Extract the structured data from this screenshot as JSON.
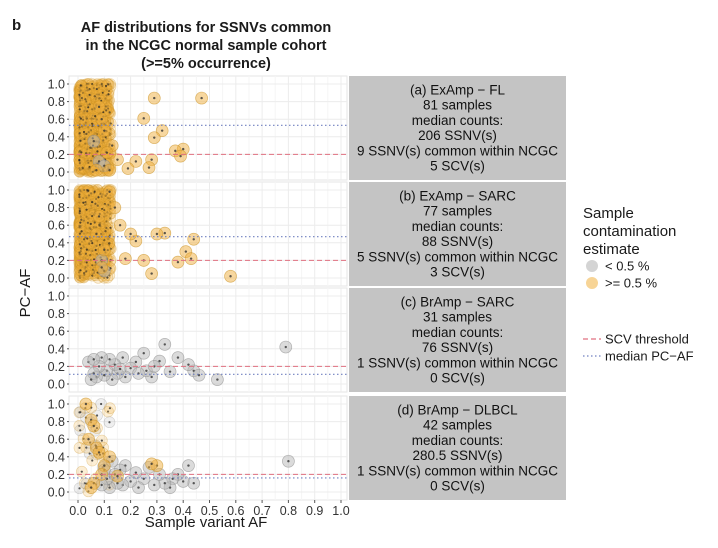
{
  "panel_label": "b",
  "chart_data": {
    "type": "scatter",
    "title": "AF distributions for SSNVs common\nin the NCGC normal sample cohort\n(>=5% occurrence)",
    "xlabel": "Sample variant AF",
    "ylabel": "PC−AF",
    "xlim": [
      0,
      1
    ],
    "ylim": [
      0,
      1
    ],
    "x_ticks": [
      "0.0",
      "0.1",
      "0.2",
      "0.3",
      "0.4",
      "0.5",
      "0.6",
      "0.7",
      "0.8",
      "0.9",
      "1.0"
    ],
    "y_ticks": [
      "0.0",
      "0.2",
      "0.4",
      "0.6",
      "0.8",
      "1.0"
    ],
    "grid": true,
    "legend": {
      "title": "Sample\ncontamination\nestimate",
      "items": [
        {
          "label": "< 0.5 %",
          "color": "#b0b0b0"
        },
        {
          "label": ">= 0.5 %",
          "color": "#f0b040"
        }
      ],
      "lines": [
        {
          "label": "SCV threshold",
          "color": "#e07080",
          "style": "dashed"
        },
        {
          "label": "median PC−AF",
          "color": "#7080c0",
          "style": "dotted"
        }
      ]
    },
    "panels": [
      {
        "strip": [
          "(a) ExAmp − FL",
          "81 samples",
          "median counts:",
          "206 SSNV(s)",
          "9 SSNV(s) common within NCGC",
          "5 SCV(s)"
        ],
        "scv_threshold": 0.2,
        "median_pc_af": 0.53,
        "points": {
          "high": [
            [
              0.47,
              0.84
            ],
            [
              0.29,
              0.84
            ],
            [
              0.25,
              0.61
            ],
            [
              0.32,
              0.47
            ],
            [
              0.29,
              0.39
            ],
            [
              0.4,
              0.26
            ],
            [
              0.37,
              0.24
            ],
            [
              0.39,
              0.18
            ],
            [
              0.28,
              0.14
            ],
            [
              0.22,
              0.12
            ],
            [
              0.27,
              0.05
            ],
            [
              0.19,
              0.04
            ],
            [
              0.15,
              0.14
            ],
            [
              0.13,
              0.3
            ],
            [
              0.1,
              0.47
            ],
            [
              0.11,
              0.22
            ],
            [
              0.09,
              0.6
            ],
            [
              0.08,
              0.74
            ],
            [
              0.07,
              0.02
            ],
            [
              0.12,
              0.02
            ]
          ],
          "low": [
            [
              0.06,
              0.35
            ],
            [
              0.08,
              0.12
            ],
            [
              0.1,
              0.07
            ]
          ]
        },
        "cluster": "high"
      },
      {
        "strip": [
          "(b) ExAmp − SARC",
          "77 samples",
          "median counts:",
          "88 SSNV(s)",
          "5 SSNV(s) common within NCGC",
          "3 SCV(s)"
        ],
        "scv_threshold": 0.2,
        "median_pc_af": 0.47,
        "points": {
          "high": [
            [
              0.58,
              0.02
            ],
            [
              0.44,
              0.44
            ],
            [
              0.41,
              0.3
            ],
            [
              0.43,
              0.22
            ],
            [
              0.38,
              0.18
            ],
            [
              0.33,
              0.51
            ],
            [
              0.3,
              0.5
            ],
            [
              0.22,
              0.42
            ],
            [
              0.2,
              0.5
            ],
            [
              0.18,
              0.22
            ],
            [
              0.16,
              0.6
            ],
            [
              0.14,
              0.8
            ],
            [
              0.12,
              0.98
            ],
            [
              0.25,
              0.2
            ],
            [
              0.1,
              0.32
            ],
            [
              0.09,
              0.12
            ],
            [
              0.28,
              0.05
            ],
            [
              0.08,
              0.7
            ],
            [
              0.07,
              0.5
            ]
          ],
          "low": [
            [
              0.09,
              0.2
            ],
            [
              0.1,
              0.08
            ]
          ]
        },
        "cluster": "high"
      },
      {
        "strip": [
          "(c) BrAmp − SARC",
          "31 samples",
          "median counts:",
          "76 SSNV(s)",
          "1 SSNV(s) common within NCGC",
          "0 SCV(s)"
        ],
        "scv_threshold": 0.2,
        "median_pc_af": 0.11,
        "points": {
          "high": [],
          "low": [
            [
              0.79,
              0.42
            ],
            [
              0.53,
              0.05
            ],
            [
              0.44,
              0.15
            ],
            [
              0.42,
              0.22
            ],
            [
              0.35,
              0.14
            ],
            [
              0.33,
              0.45
            ],
            [
              0.38,
              0.3
            ],
            [
              0.31,
              0.26
            ],
            [
              0.28,
              0.08
            ],
            [
              0.26,
              0.15
            ],
            [
              0.25,
              0.35
            ],
            [
              0.22,
              0.25
            ],
            [
              0.2,
              0.18
            ],
            [
              0.18,
              0.08
            ],
            [
              0.17,
              0.3
            ],
            [
              0.15,
              0.12
            ],
            [
              0.14,
              0.22
            ],
            [
              0.13,
              0.05
            ],
            [
              0.12,
              0.28
            ],
            [
              0.11,
              0.15
            ],
            [
              0.1,
              0.1
            ],
            [
              0.09,
              0.3
            ],
            [
              0.08,
              0.2
            ],
            [
              0.07,
              0.08
            ],
            [
              0.06,
              0.12
            ],
            [
              0.05,
              0.05
            ],
            [
              0.04,
              0.25
            ],
            [
              0.06,
              0.28
            ],
            [
              0.16,
              0.17
            ],
            [
              0.23,
              0.12
            ],
            [
              0.29,
              0.2
            ],
            [
              0.46,
              0.1
            ]
          ]
        },
        "cluster": "none"
      },
      {
        "strip": [
          "(d) BrAmp − DLBCL",
          "42 samples",
          "median counts:",
          "280.5 SSNV(s)",
          "1 SSNV(s) common within NCGC",
          "0 SCV(s)"
        ],
        "scv_threshold": 0.2,
        "median_pc_af": 0.16,
        "points": {
          "high": [
            [
              0.03,
              1.0
            ],
            [
              0.05,
              0.82
            ],
            [
              0.06,
              0.75
            ],
            [
              0.04,
              0.6
            ],
            [
              0.07,
              0.5
            ],
            [
              0.08,
              0.45
            ],
            [
              0.12,
              0.4
            ],
            [
              0.1,
              0.3
            ],
            [
              0.09,
              0.2
            ],
            [
              0.06,
              0.1
            ],
            [
              0.3,
              0.3
            ],
            [
              0.15,
              0.18
            ],
            [
              0.05,
              0.05
            ],
            [
              0.28,
              0.32
            ]
          ],
          "low": [
            [
              0.8,
              0.35
            ],
            [
              0.44,
              0.1
            ],
            [
              0.42,
              0.3
            ],
            [
              0.4,
              0.12
            ],
            [
              0.38,
              0.2
            ],
            [
              0.36,
              0.15
            ],
            [
              0.35,
              0.05
            ],
            [
              0.33,
              0.1
            ],
            [
              0.31,
              0.2
            ],
            [
              0.29,
              0.08
            ],
            [
              0.27,
              0.28
            ],
            [
              0.25,
              0.15
            ],
            [
              0.23,
              0.05
            ],
            [
              0.22,
              0.22
            ],
            [
              0.2,
              0.12
            ],
            [
              0.18,
              0.3
            ],
            [
              0.17,
              0.08
            ],
            [
              0.16,
              0.25
            ],
            [
              0.15,
              0.1
            ],
            [
              0.14,
              0.2
            ],
            [
              0.13,
              0.35
            ],
            [
              0.12,
              0.05
            ],
            [
              0.11,
              0.15
            ],
            [
              0.1,
              0.25
            ],
            [
              0.09,
              0.08
            ]
          ]
        },
        "cluster": "mixed"
      }
    ]
  }
}
